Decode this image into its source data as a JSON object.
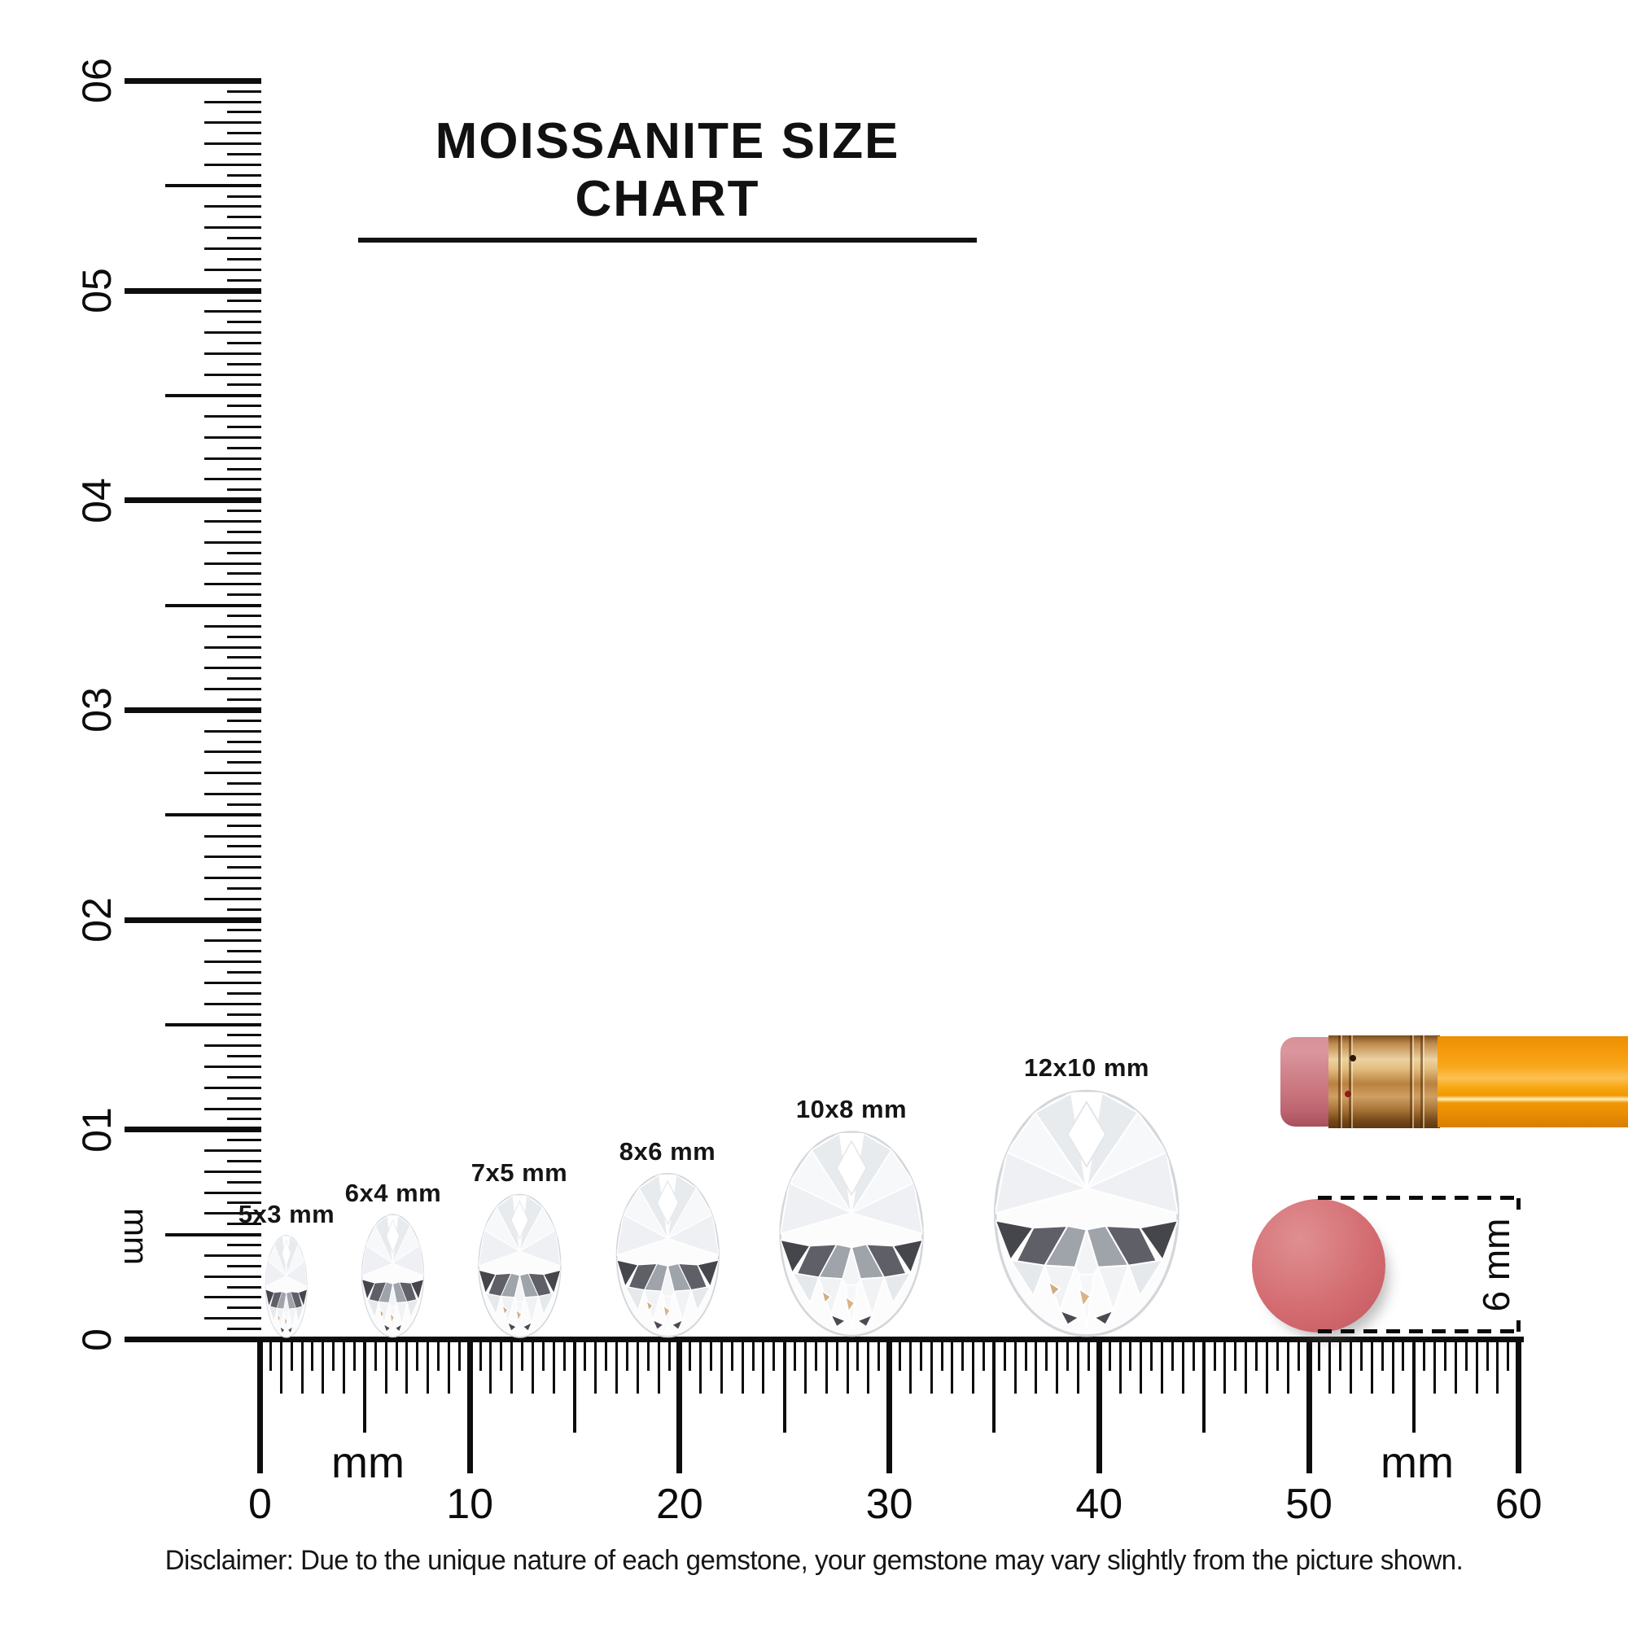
{
  "title": "MOISSANITE SIZE CHART",
  "disclaimer": "Disclaimer: Due to the unique nature of each gemstone, your gemstone may vary slightly from the picture shown.",
  "rulers": {
    "vertical": {
      "unit_label": "mm",
      "min": 0,
      "max": 60,
      "major_step": 10,
      "labels": [
        "0",
        "10",
        "20",
        "30",
        "40",
        "50",
        "60"
      ]
    },
    "horizontal": {
      "unit_label_left": "mm",
      "unit_label_right": "mm",
      "min": 0,
      "max": 60,
      "major_step": 10,
      "labels": [
        "0",
        "10",
        "20",
        "30",
        "40",
        "50",
        "60"
      ]
    }
  },
  "gems": [
    {
      "id": "5x3",
      "label": "5x3 mm",
      "length_mm": 5,
      "width_mm": 3
    },
    {
      "id": "6x4",
      "label": "6x4 mm",
      "length_mm": 6,
      "width_mm": 4
    },
    {
      "id": "7x5",
      "label": "7x5 mm",
      "length_mm": 7,
      "width_mm": 5
    },
    {
      "id": "8x6",
      "label": "8x6 mm",
      "length_mm": 8,
      "width_mm": 6
    },
    {
      "id": "10x8",
      "label": "10x8 mm",
      "length_mm": 10,
      "width_mm": 8
    },
    {
      "id": "12x10",
      "label": "12x10 mm",
      "length_mm": 12,
      "width_mm": 10
    }
  ],
  "reference_objects": {
    "pencil": {
      "name": "pencil with eraser",
      "body_color": "#f59c0c",
      "ferrule_color": "#c08c4f",
      "eraser_color": "#ca767f"
    },
    "eraser_dot": {
      "label": "6 mm",
      "diameter_mm": 6,
      "color": "#d26a6f"
    }
  },
  "colors": {
    "ink": "#0d0d0d",
    "background": "#ffffff"
  }
}
